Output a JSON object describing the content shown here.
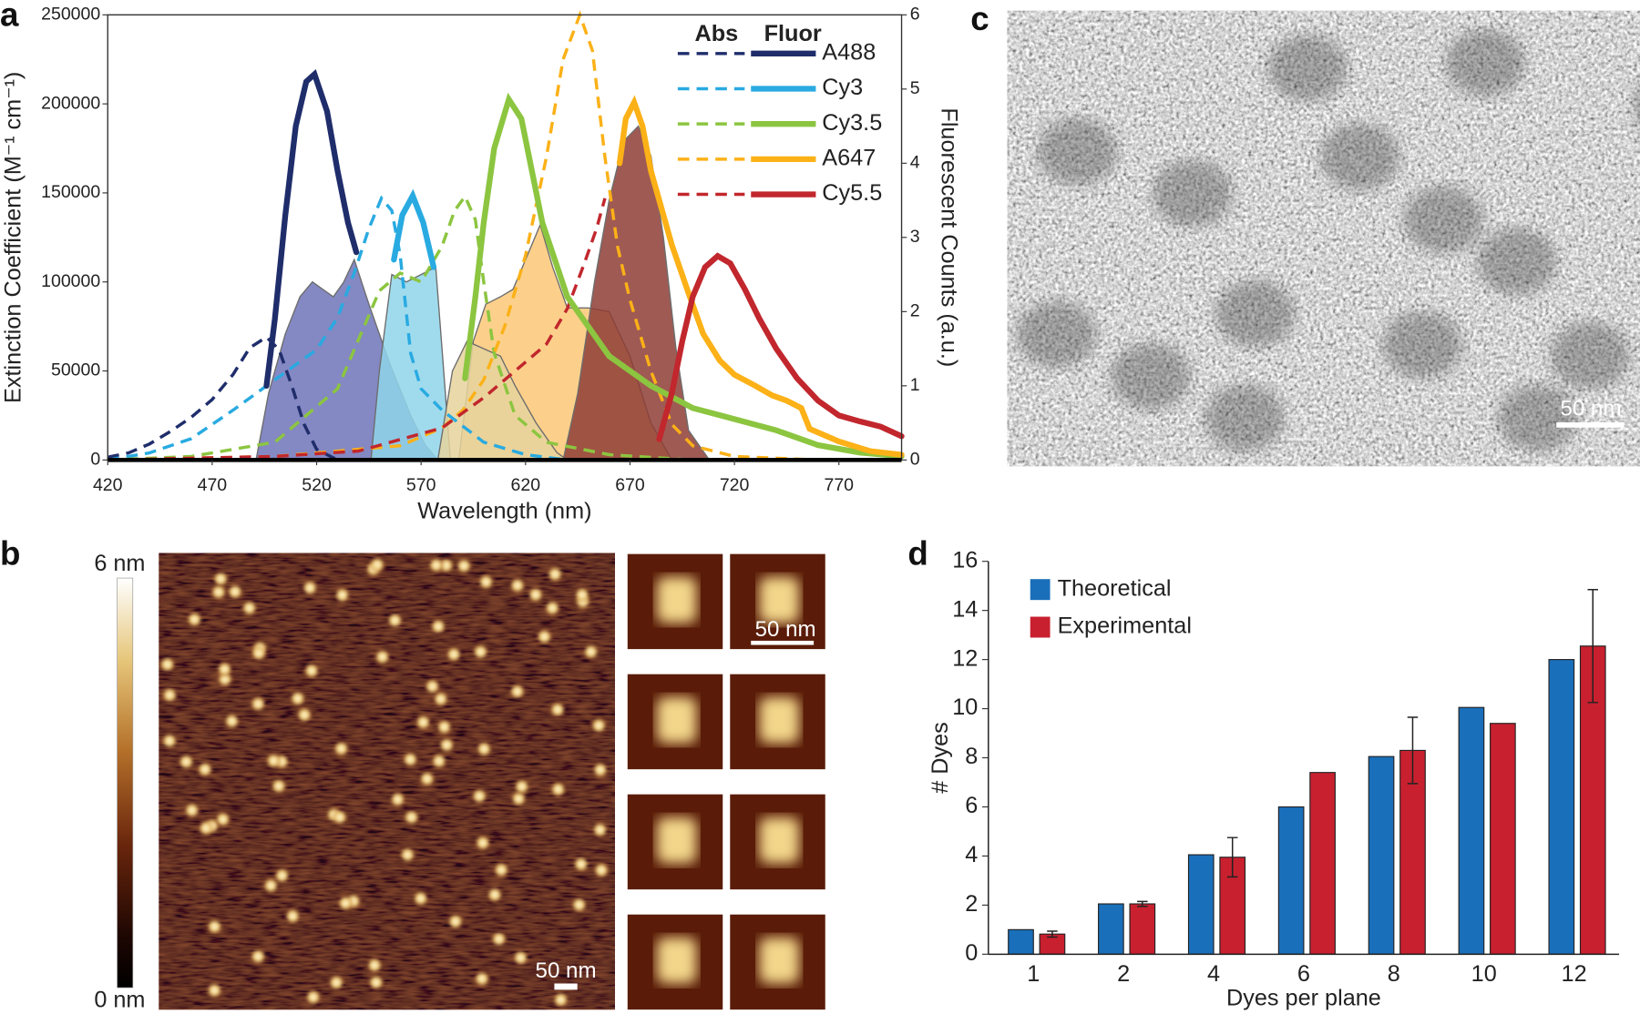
{
  "chart_data": [
    {
      "type": "line",
      "label": "a",
      "xlabel": "Wavelength (nm)",
      "ylabel": "Extinction Coefficient (M⁻¹ cm⁻¹)",
      "y2label": "Fluorescent Counts (a.u.)",
      "xlim": [
        420,
        800
      ],
      "xticks": [
        420,
        470,
        520,
        570,
        620,
        670,
        720,
        770
      ],
      "ylim": [
        0,
        250000
      ],
      "yticks": [
        0,
        50000,
        100000,
        150000,
        200000,
        250000
      ],
      "y2lim": [
        0,
        6
      ],
      "y2ticks": [
        0,
        1,
        2,
        3,
        4,
        5,
        6
      ],
      "legend": "upper right",
      "legend_headers": [
        "Abs",
        "Fluor"
      ],
      "areas": [
        {
          "color": "#6f73b9",
          "axis": "y2",
          "x": [
            491,
            497,
            505,
            512,
            518,
            523,
            528,
            533,
            538,
            545,
            555,
            565,
            572,
            578
          ],
          "values": [
            0,
            0.9,
            1.7,
            2.2,
            2.4,
            2.3,
            2.2,
            2.4,
            2.7,
            2.1,
            1.3,
            0.6,
            0.2,
            0
          ]
        },
        {
          "color": "#8fd5ea",
          "axis": "y2",
          "x": [
            546,
            550,
            556,
            563,
            570,
            577,
            580,
            584
          ],
          "values": [
            0,
            1.2,
            2.5,
            2.4,
            2.5,
            2.6,
            1.5,
            0
          ]
        },
        {
          "color": "#fbc877",
          "axis": "y2",
          "x": [
            588,
            595,
            601,
            608,
            614,
            620,
            627,
            633,
            640,
            650,
            660,
            670,
            680,
            690
          ],
          "values": [
            0,
            1.6,
            2.1,
            2.2,
            2.3,
            2.7,
            3.17,
            2.6,
            2.05,
            2.05,
            2.0,
            1.4,
            0.5,
            0
          ]
        },
        {
          "color": "#e6d39c",
          "axis": "y2",
          "x": [
            578,
            585,
            592,
            600,
            608,
            615,
            625,
            635,
            640
          ],
          "values": [
            0,
            1.2,
            1.6,
            1.5,
            1.4,
            1.0,
            0.5,
            0.1,
            0
          ]
        },
        {
          "color": "#8e3d36",
          "axis": "y2",
          "x": [
            638,
            645,
            653,
            660,
            667,
            674,
            680,
            686,
            692,
            698,
            708
          ],
          "values": [
            0,
            0.9,
            2.4,
            3.5,
            4.3,
            4.5,
            4.1,
            3.0,
            1.5,
            0.4,
            0
          ]
        }
      ],
      "series": [
        {
          "name": "A488",
          "color": "#1f2d6b",
          "abs": {
            "x": [
              420,
              430,
              440,
              450,
              460,
              470,
              480,
              488,
              496,
              502,
              508,
              514,
              520,
              530
            ],
            "values": [
              1500,
              4000,
              9000,
              16000,
              24000,
              34000,
              48000,
              63000,
              69000,
              62000,
              42000,
              20000,
              6000,
              0
            ]
          },
          "fluor": {
            "axis": "y2",
            "x": [
              496,
              500,
              505,
              510,
              515,
              519,
              525,
              530,
              535,
              539
            ],
            "values": [
              1.0,
              1.9,
              3.3,
              4.5,
              5.1,
              5.2,
              4.7,
              3.9,
              3.2,
              2.8
            ]
          }
        },
        {
          "name": "Cy3",
          "color": "#29aae1",
          "abs": {
            "x": [
              420,
              440,
              460,
              480,
              500,
              520,
              530,
              538,
              545,
              551,
              556,
              560,
              565,
              570,
              580,
              600,
              620,
              640
            ],
            "values": [
              0,
              4000,
              12000,
              28000,
              45000,
              62000,
              80000,
              105000,
              130000,
              147000,
              140000,
              115000,
              60000,
              40000,
              28000,
              10000,
              3000,
              0
            ]
          },
          "fluor": {
            "axis": "y2",
            "x": [
              557,
              561,
              566,
              571,
              576
            ],
            "values": [
              2.7,
              3.3,
              3.56,
              3.2,
              2.6
            ]
          }
        },
        {
          "name": "Cy3.5",
          "color": "#8cc540",
          "abs": {
            "x": [
              420,
              460,
              500,
              530,
              550,
              560,
              570,
              580,
              586,
              591,
              596,
              600,
              605,
              615,
              630,
              660,
              700
            ],
            "values": [
              0,
              2000,
              10000,
              40000,
              95000,
              105000,
              100000,
              120000,
              140000,
              148000,
              135000,
              100000,
              60000,
              25000,
              10000,
              3000,
              0
            ]
          },
          "fluor": {
            "axis": "y2",
            "x": [
              591,
              596,
              600,
              605,
              612,
              618,
              623,
              628,
              640,
              660,
              680,
              700,
              720,
              740,
              760,
              780,
              800
            ],
            "values": [
              1.1,
              2.2,
              3.2,
              4.2,
              4.86,
              4.6,
              3.9,
              3.2,
              2.2,
              1.4,
              1.0,
              0.7,
              0.55,
              0.4,
              0.2,
              0.1,
              0.05
            ]
          }
        },
        {
          "name": "A647",
          "color": "#fbb117",
          "abs": {
            "x": [
              420,
              500,
              560,
              580,
              590,
              600,
              610,
              620,
              630,
              638,
              646,
              652,
              658,
              664,
              670,
              680,
              690,
              700,
              720,
              760
            ],
            "values": [
              0,
              2000,
              8000,
              18000,
              28000,
              45000,
              75000,
              115000,
              170000,
              225000,
              250000,
              230000,
              170000,
              120000,
              90000,
              50000,
              20000,
              8000,
              2000,
              0
            ]
          },
          "fluor": {
            "axis": "y2",
            "x": [
              665,
              668,
              672,
              676,
              680,
              690,
              698,
              705,
              713,
              720,
              730,
              738,
              745,
              752,
              756,
              770,
              785,
              800
            ],
            "values": [
              4.0,
              4.6,
              4.82,
              4.5,
              3.9,
              2.9,
              2.25,
              1.7,
              1.34,
              1.15,
              1.0,
              0.87,
              0.8,
              0.7,
              0.42,
              0.25,
              0.12,
              0.07
            ]
          }
        },
        {
          "name": "Cy5.5",
          "color": "#c1272d",
          "abs": {
            "x": [
              420,
              500,
              540,
              580,
              600,
              620,
              630,
              640,
              648,
              654,
              658
            ],
            "values": [
              0,
              2000,
              5000,
              18000,
              35000,
              55000,
              65000,
              85000,
              110000,
              130000,
              147000
            ]
          },
          "fluor": {
            "axis": "y2",
            "x": [
              684,
              690,
              695,
              700,
              706,
              712,
              718,
              725,
              732,
              740,
              750,
              760,
              770,
              780,
              790,
              800
            ],
            "values": [
              0.28,
              0.9,
              1.6,
              2.2,
              2.6,
              2.75,
              2.65,
              2.3,
              1.9,
              1.5,
              1.1,
              0.8,
              0.6,
              0.52,
              0.45,
              0.32
            ]
          }
        }
      ]
    },
    {
      "type": "bar",
      "label": "d",
      "xlabel": "Dyes per plane",
      "ylabel": "# Dyes",
      "categories": [
        "1",
        "2",
        "4",
        "6",
        "8",
        "10",
        "12"
      ],
      "ylim": [
        0,
        16
      ],
      "yticks": [
        0,
        2,
        4,
        6,
        8,
        10,
        12,
        14,
        16
      ],
      "legend": "upper left",
      "series": [
        {
          "name": "Theoretical",
          "color": "#1a6fba",
          "values": [
            1.0,
            2.05,
            4.05,
            6.0,
            8.05,
            10.05,
            12.0
          ]
        },
        {
          "name": "Experimental",
          "color": "#c8202f",
          "values": [
            0.82,
            2.05,
            3.95,
            7.4,
            8.3,
            9.4,
            12.55
          ],
          "errors": [
            0.12,
            0.1,
            0.8,
            null,
            1.35,
            null,
            2.3
          ]
        }
      ]
    }
  ],
  "images": [
    {
      "label": "b",
      "scale_max": "6 nm",
      "scale_min": "0 nm",
      "scale_bar": "50 nm",
      "inset_scale_bar": "50 nm"
    },
    {
      "label": "c",
      "scale_bar": "50 nm"
    }
  ]
}
